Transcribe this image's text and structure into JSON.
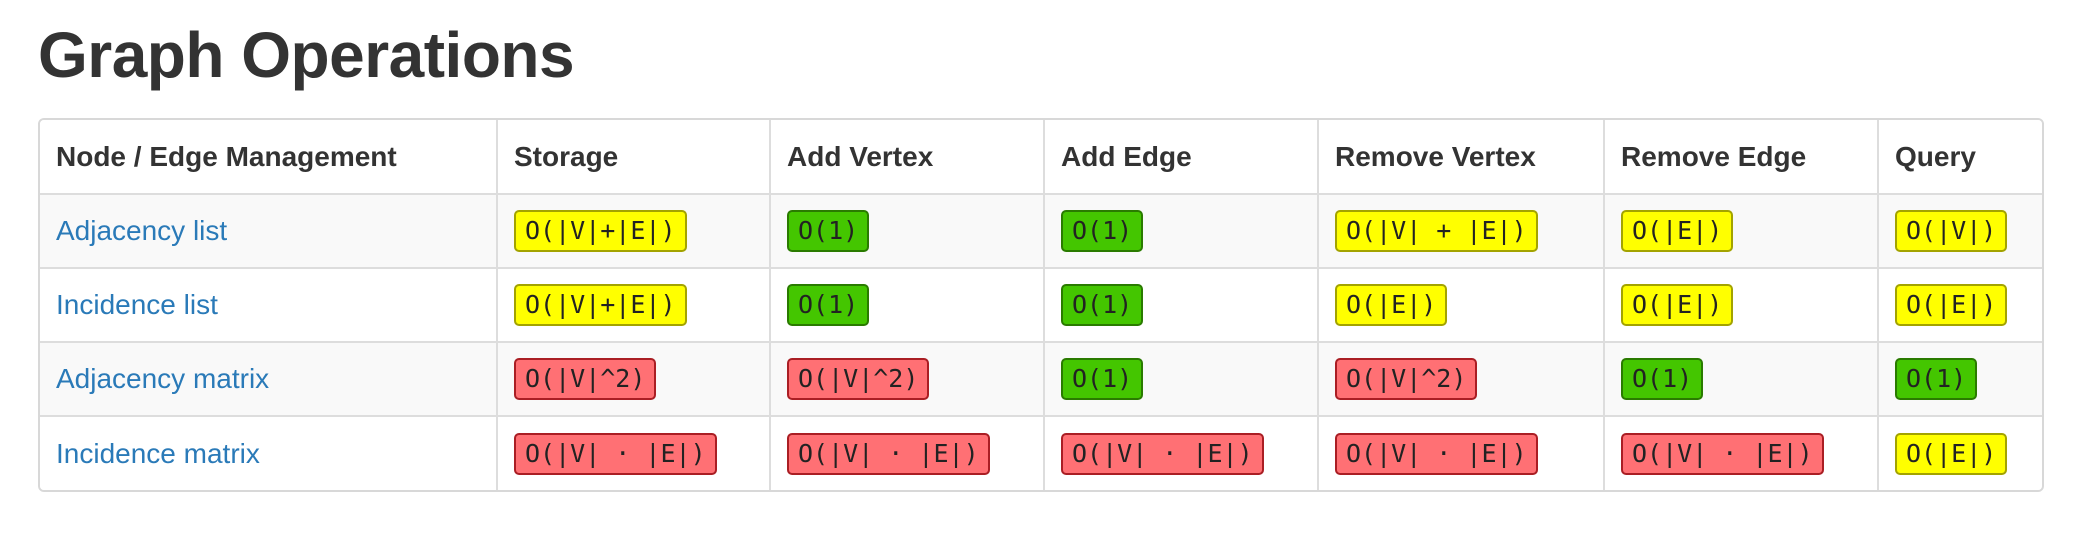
{
  "title": "Graph Operations",
  "headers": [
    "Node / Edge Management",
    "Storage",
    "Add Vertex",
    "Add Edge",
    "Remove Vertex",
    "Remove Edge",
    "Query"
  ],
  "colors": {
    "yellow": "#ffff00",
    "green": "#44c600",
    "red": "#ff7074",
    "link": "#2a7ab8"
  },
  "rows": [
    {
      "name": "Adjacency list",
      "cells": [
        {
          "text": "O(|V|+|E|)",
          "color": "yellow"
        },
        {
          "text": "O(1)",
          "color": "green"
        },
        {
          "text": "O(1)",
          "color": "green"
        },
        {
          "text": "O(|V| + |E|)",
          "color": "yellow"
        },
        {
          "text": "O(|E|)",
          "color": "yellow"
        },
        {
          "text": "O(|V|)",
          "color": "yellow"
        }
      ]
    },
    {
      "name": "Incidence list",
      "cells": [
        {
          "text": "O(|V|+|E|)",
          "color": "yellow"
        },
        {
          "text": "O(1)",
          "color": "green"
        },
        {
          "text": "O(1)",
          "color": "green"
        },
        {
          "text": "O(|E|)",
          "color": "yellow"
        },
        {
          "text": "O(|E|)",
          "color": "yellow"
        },
        {
          "text": "O(|E|)",
          "color": "yellow"
        }
      ]
    },
    {
      "name": "Adjacency matrix",
      "cells": [
        {
          "text": "O(|V|^2)",
          "color": "red"
        },
        {
          "text": "O(|V|^2)",
          "color": "red"
        },
        {
          "text": "O(1)",
          "color": "green"
        },
        {
          "text": "O(|V|^2)",
          "color": "red"
        },
        {
          "text": "O(1)",
          "color": "green"
        },
        {
          "text": "O(1)",
          "color": "green"
        }
      ]
    },
    {
      "name": "Incidence matrix",
      "cells": [
        {
          "text": "O(|V| · |E|)",
          "color": "red"
        },
        {
          "text": "O(|V| · |E|)",
          "color": "red"
        },
        {
          "text": "O(|V| · |E|)",
          "color": "red"
        },
        {
          "text": "O(|V| · |E|)",
          "color": "red"
        },
        {
          "text": "O(|V| · |E|)",
          "color": "red"
        },
        {
          "text": "O(|E|)",
          "color": "yellow"
        }
      ]
    }
  ]
}
